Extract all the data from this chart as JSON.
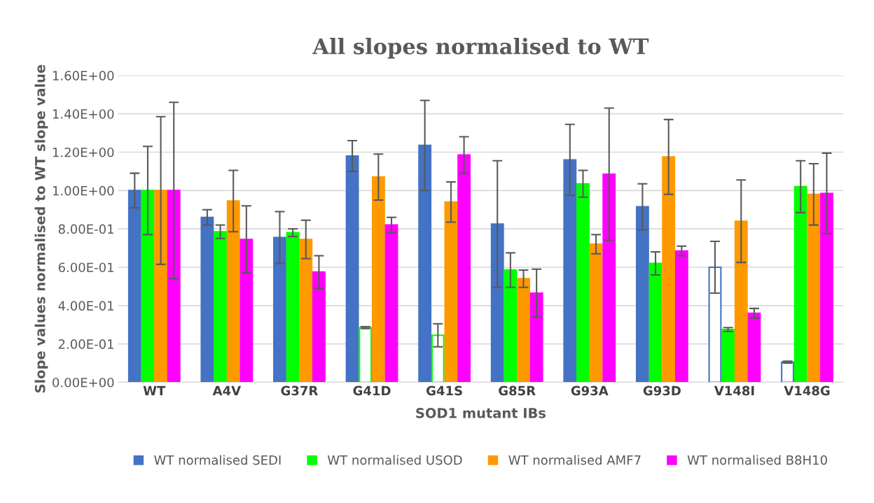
{
  "chart_data": {
    "type": "bar",
    "title": "All slopes normalised to WT",
    "xlabel": "SOD1 mutant IBs",
    "ylabel": "Slope values normalised to WT slope value",
    "categories": [
      "WT",
      "A4V",
      "G37R",
      "G41D",
      "G41S",
      "G85R",
      "G93A",
      "G93D",
      "V148I",
      "V148G"
    ],
    "series": [
      {
        "name": "WT normalised SEDI",
        "color": "#4472c4",
        "colors": [
          "#4472c4",
          "#4472c4",
          "#4472c4",
          "#4472c4",
          "#4472c4",
          "#4472c4",
          "#4472c4",
          "#4472c4",
          "#ffffff",
          "#ffffff"
        ],
        "values": [
          1.0,
          0.86,
          0.755,
          1.18,
          1.235,
          0.825,
          1.16,
          0.915,
          0.6,
          0.105
        ],
        "errors": [
          0.09,
          0.04,
          0.135,
          0.08,
          0.235,
          0.33,
          0.185,
          0.12,
          0.135,
          0.005
        ]
      },
      {
        "name": "WT normalised USOD",
        "color": "#00ff00",
        "colors": [
          "#00ff00",
          "#00ff00",
          "#00ff00",
          "#ffffff",
          "#ffffff",
          "#00ff00",
          "#00ff00",
          "#00ff00",
          "#00ff00",
          "#00ff00"
        ],
        "values": [
          1.0,
          0.785,
          0.78,
          0.285,
          0.245,
          0.585,
          1.035,
          0.62,
          0.275,
          1.02
        ],
        "errors": [
          0.23,
          0.035,
          0.02,
          0.005,
          0.06,
          0.09,
          0.07,
          0.06,
          0.01,
          0.135
        ]
      },
      {
        "name": "WT normalised AMF7",
        "color": "#ff9900",
        "values": [
          1.0,
          0.945,
          0.745,
          1.07,
          0.94,
          0.54,
          0.72,
          1.175,
          0.84,
          0.98
        ],
        "errors": [
          0.385,
          0.16,
          0.1,
          0.12,
          0.105,
          0.045,
          0.05,
          0.195,
          0.215,
          0.16
        ]
      },
      {
        "name": "WT normalised B8H10",
        "color": "#ff00ff",
        "values": [
          1.0,
          0.745,
          0.575,
          0.82,
          1.185,
          0.465,
          1.085,
          0.685,
          0.36,
          0.985
        ],
        "errors": [
          0.46,
          0.175,
          0.085,
          0.04,
          0.095,
          0.125,
          0.345,
          0.025,
          0.025,
          0.21
        ]
      }
    ],
    "ylim": [
      0,
      1.6
    ],
    "yticks": [
      {
        "value": 0,
        "label": "0.00E+00"
      },
      {
        "value": 0.2,
        "label": "2.00E-01"
      },
      {
        "value": 0.4,
        "label": "4.00E-01"
      },
      {
        "value": 0.6,
        "label": "6.00E-01"
      },
      {
        "value": 0.8,
        "label": "8.00E-01"
      },
      {
        "value": 1.0,
        "label": "1.00E+00"
      },
      {
        "value": 1.2,
        "label": "1.20E+00"
      },
      {
        "value": 1.4,
        "label": "1.40E+00"
      },
      {
        "value": 1.6,
        "label": "1.60E+00"
      }
    ],
    "grid": "y",
    "legend": "bottom"
  }
}
